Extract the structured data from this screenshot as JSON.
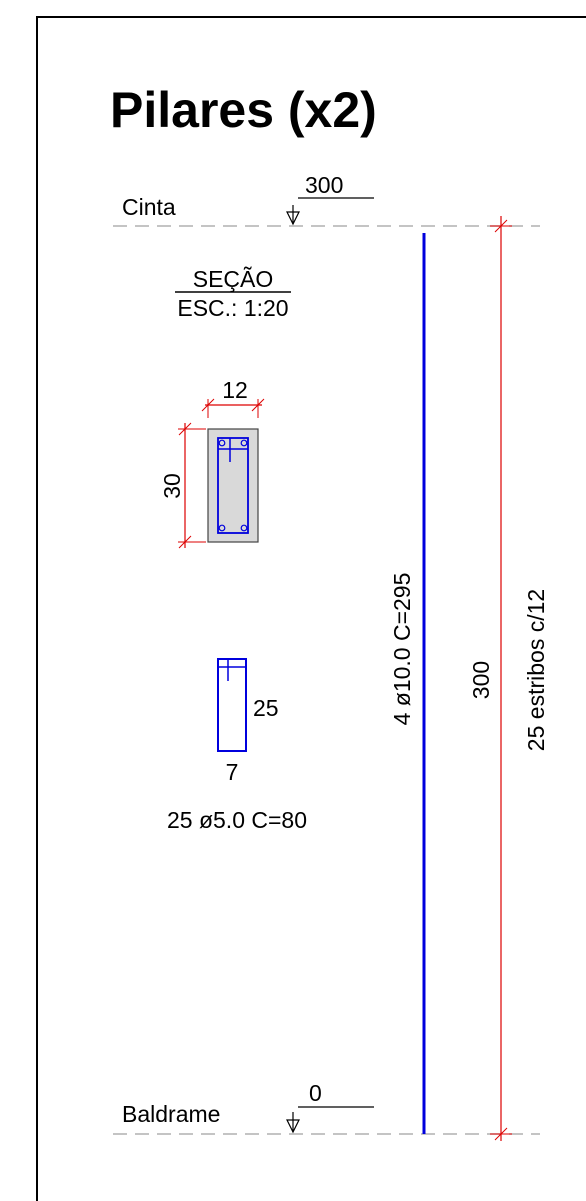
{
  "title": "Pilares (x2)",
  "levels": {
    "top": {
      "name": "Cinta",
      "value": "300"
    },
    "bottom": {
      "name": "Baldrame",
      "value": "0"
    }
  },
  "section": {
    "heading": "SEÇÃO",
    "scale": "ESC.: 1:20",
    "width": "12",
    "height": "30"
  },
  "stirrup": {
    "height": "25",
    "width": "7",
    "spec": "25 ø5.0 C=80"
  },
  "main_bar": {
    "spec": "4 ø10.0  C=295"
  },
  "column_dimension": {
    "length": "300",
    "stirrups_note": "25 estribos c/12"
  },
  "colors": {
    "rebar": "#0000dd",
    "dimension": "#dd0000",
    "concrete": "#d9d9d9",
    "level_line": "#b0b0b0"
  }
}
